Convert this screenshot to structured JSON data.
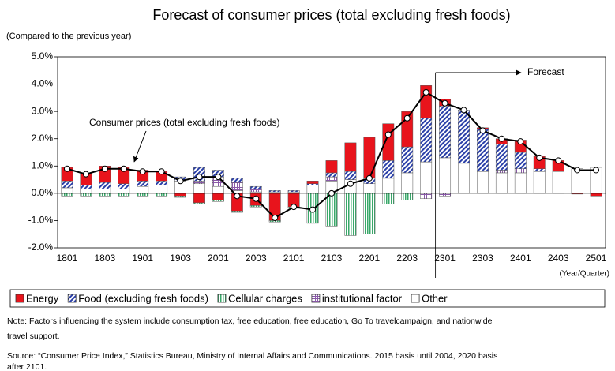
{
  "chart_data": {
    "type": "bar",
    "stacked": true,
    "title": "Forecast of consumer prices (total excluding fresh foods)",
    "y_label": "(Compared to the previous year)",
    "x_label": "(Year/Quarter)",
    "categories": [
      "1801",
      null,
      "1803",
      null,
      "1901",
      null,
      "1903",
      null,
      "2001",
      null,
      "2003",
      null,
      "2101",
      null,
      "2103",
      null,
      "2201",
      null,
      "2203",
      null,
      "2301",
      null,
      "2303",
      null,
      "2401",
      null,
      "2403",
      null,
      "2501"
    ],
    "series": [
      {
        "name": "Energy",
        "color": "#e8141c",
        "values": [
          0.5,
          0.45,
          0.6,
          0.6,
          0.4,
          0.35,
          -0.1,
          -0.35,
          -0.25,
          -0.65,
          -0.45,
          -1.0,
          -0.5,
          0.1,
          0.45,
          1.05,
          1.5,
          1.35,
          1.3,
          1.2,
          0.25,
          0,
          0.05,
          0.2,
          0.45,
          0.45,
          0.4,
          -0.03,
          -0.1
        ]
      },
      {
        "name": "Food (excluding fresh foods)",
        "color": "#2a3fa8",
        "values": [
          0.25,
          0.15,
          0.25,
          0.2,
          0.2,
          0.15,
          0.15,
          0.5,
          0.25,
          0.15,
          0.1,
          0.05,
          0.05,
          0.05,
          0.15,
          0.3,
          0.2,
          0.65,
          0.95,
          1.6,
          1.9,
          1.95,
          1.55,
          0.95,
          0.6,
          0.1,
          0,
          0,
          0
        ]
      },
      {
        "name": "Cellular charges",
        "color": "#3aa86a",
        "values": [
          -0.1,
          -0.1,
          -0.1,
          -0.1,
          -0.1,
          -0.1,
          -0.05,
          -0.05,
          -0.05,
          -0.05,
          -0.05,
          -0.05,
          -0.05,
          -1.1,
          -1.2,
          -1.55,
          -1.5,
          -0.4,
          -0.25,
          0,
          0,
          0,
          0,
          0,
          0,
          0,
          0,
          0,
          0
        ]
      },
      {
        "name": "institutional factor",
        "color": "#8a5aa8",
        "values": [
          0,
          0,
          0,
          0,
          0,
          0,
          0,
          0.1,
          0.35,
          0.3,
          0.1,
          0,
          0,
          0,
          0.15,
          0,
          0,
          0,
          0,
          -0.2,
          -0.1,
          0,
          0,
          0.1,
          0.15,
          0,
          0,
          0,
          0
        ]
      },
      {
        "name": "Other",
        "color": "#ffffff",
        "values": [
          0.2,
          0.15,
          0.15,
          0.15,
          0.25,
          0.3,
          0.45,
          0.35,
          0.25,
          0.1,
          0.05,
          0.05,
          0.05,
          0.3,
          0.45,
          0.5,
          0.35,
          0.55,
          0.75,
          1.15,
          1.3,
          1.1,
          0.8,
          0.75,
          0.75,
          0.8,
          0.8,
          0.9,
          0.95
        ]
      }
    ],
    "line": {
      "name": "Consumer prices (total excluding fresh foods)",
      "color": "#000000",
      "values": [
        0.9,
        0.7,
        0.9,
        0.9,
        0.8,
        0.8,
        0.45,
        0.6,
        0.6,
        -0.1,
        -0.2,
        -0.9,
        -0.5,
        -0.6,
        0.0,
        0.35,
        0.55,
        2.15,
        2.75,
        3.7,
        3.3,
        3.05,
        2.3,
        2.0,
        1.9,
        1.3,
        1.2,
        0.85,
        0.85
      ]
    },
    "forecast_label": "Forecast",
    "ylim": [
      -2,
      5
    ],
    "yticks": [
      {
        "value": -2,
        "label": "-2.0%"
      },
      {
        "value": -1,
        "label": "-1.0%"
      },
      {
        "value": 0,
        "label": "0.0%"
      },
      {
        "value": 1,
        "label": "1.0%"
      },
      {
        "value": 2,
        "label": "2.0%"
      },
      {
        "value": 3,
        "label": "3.0%"
      },
      {
        "value": 4,
        "label": "4.0%"
      },
      {
        "value": 5,
        "label": "5.0%"
      }
    ],
    "grid": false,
    "legend": "bottom",
    "notes": [
      "Note: Factors influencing the system include consumption tax, free education, free education, Go To travelcampaign, and nationwide",
      "travel support.",
      "Source: “Consumer Price Index,” Statistics Bureau, Ministry of Internal Affairs and Communications. 2015 basis until 2004, 2020 basis",
      "after 2101."
    ]
  }
}
